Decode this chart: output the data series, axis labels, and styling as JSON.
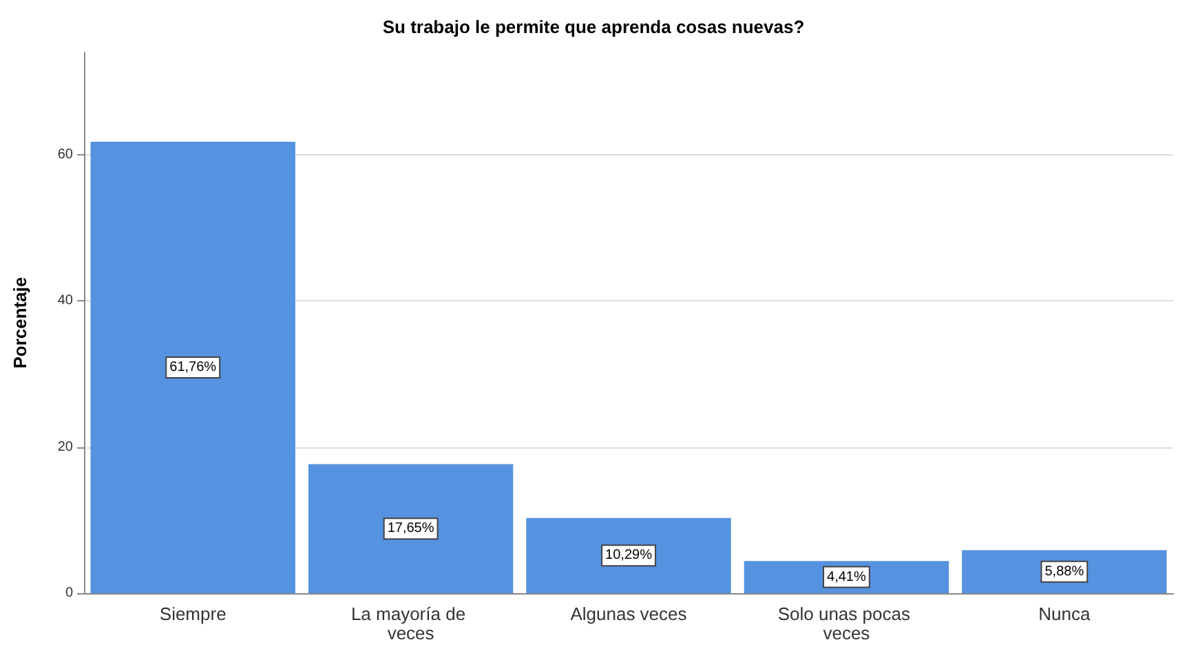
{
  "chart_data": {
    "type": "bar",
    "title": "Su trabajo le permite que aprenda cosas nuevas?",
    "ylabel": "Porcentaje",
    "categories": [
      "Siempre",
      "La mayoría de veces",
      "Algunas veces",
      "Solo unas pocas veces",
      "Nunca"
    ],
    "values": [
      61.76,
      17.65,
      10.29,
      4.41,
      5.88
    ],
    "value_labels": [
      "61,76%",
      "17,65%",
      "10,29%",
      "4,41%",
      "5,88%"
    ],
    "color": "#5592e0",
    "ylim": [
      0,
      74
    ],
    "yticks": [
      0,
      20,
      40,
      60
    ],
    "grid": "y"
  }
}
